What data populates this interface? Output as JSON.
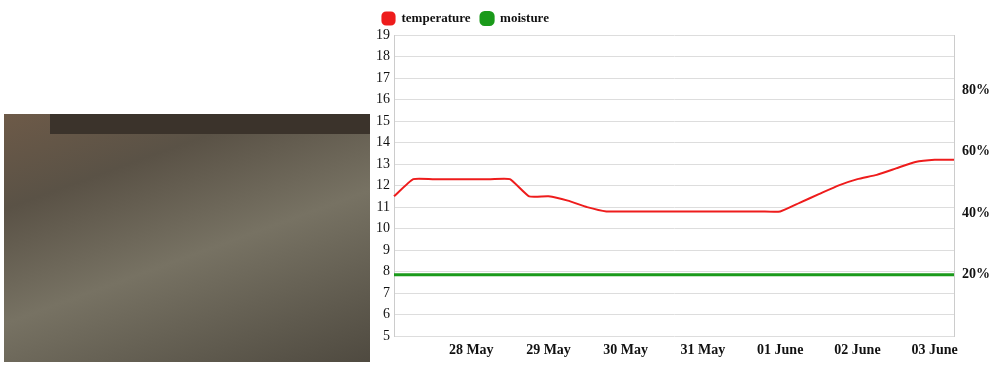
{
  "chart_data": {
    "type": "line",
    "categories": [
      null,
      null,
      null,
      null,
      "28 May",
      null,
      null,
      null,
      "29 May",
      null,
      null,
      null,
      "30 May",
      null,
      null,
      null,
      "31 May",
      null,
      null,
      null,
      "01 June",
      null,
      null,
      null,
      "02 June",
      null,
      null,
      null,
      "03 June",
      null
    ],
    "series": [
      {
        "name": "temperature",
        "color": "#ee1c1c",
        "values": [
          11.5,
          12.3,
          12.3,
          12.3,
          12.3,
          12.3,
          12.3,
          11.5,
          11.5,
          11.3,
          11.0,
          10.8,
          10.8,
          10.8,
          10.8,
          10.8,
          10.8,
          10.8,
          10.8,
          10.8,
          10.8,
          11.2,
          11.6,
          12.0,
          12.3,
          12.5,
          12.8,
          13.1,
          13.2,
          13.2
        ]
      },
      {
        "name": "moisture",
        "color": "#1a9a1a",
        "axis": "y2",
        "values": [
          20,
          20,
          20,
          20,
          20,
          20,
          20,
          20,
          20,
          20,
          20,
          20,
          20,
          20,
          20,
          20,
          20,
          20,
          20,
          20,
          20,
          20,
          20,
          20,
          20,
          20,
          20,
          20,
          20,
          20
        ]
      }
    ],
    "ylim": [
      5,
      19
    ],
    "yticks": [
      5,
      6,
      7,
      8,
      9,
      10,
      11,
      12,
      13,
      14,
      15,
      16,
      17,
      18,
      19
    ],
    "y2lim": [
      0,
      98
    ],
    "y2ticks": [
      {
        "value": 20,
        "label": "20%"
      },
      {
        "value": 40,
        "label": "40%"
      },
      {
        "value": 60,
        "label": "60%"
      },
      {
        "value": 80,
        "label": "80%"
      }
    ],
    "grid": true,
    "legend": "top-left"
  }
}
